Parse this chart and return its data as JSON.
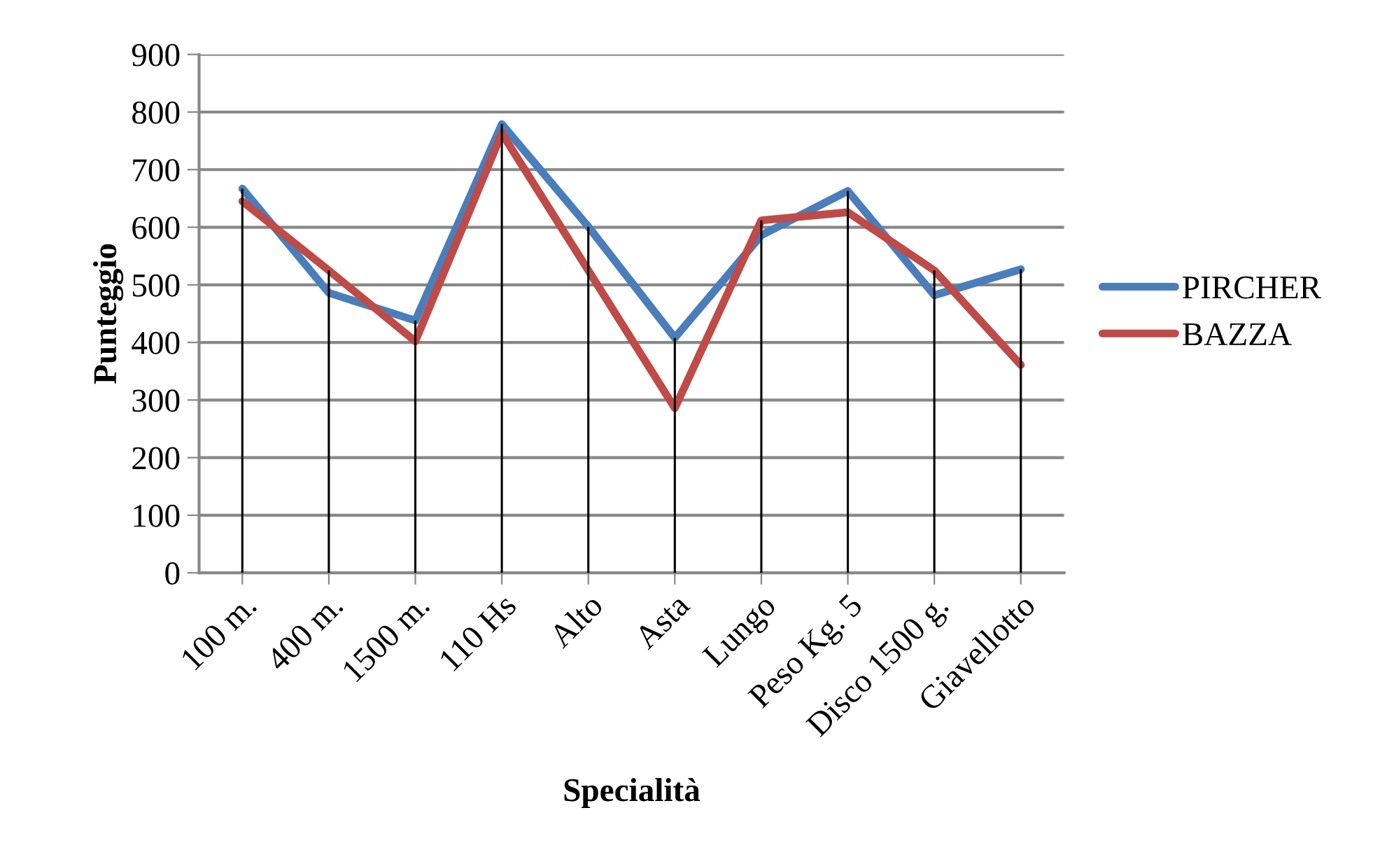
{
  "chart_data": {
    "type": "line",
    "xlabel": "Specialità",
    "ylabel": "Punteggio",
    "categories": [
      "100 m.",
      "400 m.",
      "1500 m.",
      "110 Hs",
      "Alto",
      "Asta",
      "Lungo",
      "Peso Kg. 5",
      "Disco 1500 g.",
      "Giavellotto"
    ],
    "series": [
      {
        "name": "PIRCHER",
        "color": "#4a7ebb",
        "values": [
          667,
          486,
          438,
          779,
          601,
          408,
          586,
          663,
          482,
          527
        ]
      },
      {
        "name": "BAZZA",
        "color": "#be4b48",
        "values": [
          645,
          525,
          402,
          763,
          525,
          286,
          612,
          626,
          525,
          361
        ]
      },
      {
        "type": "bar",
        "color": "#000000",
        "values": [
          667,
          525,
          438,
          779,
          601,
          408,
          612,
          663,
          525,
          527
        ]
      }
    ],
    "ylim": [
      0,
      900
    ],
    "yticks": [
      0,
      100,
      200,
      300,
      400,
      500,
      600,
      700,
      800,
      900
    ],
    "grid": "y",
    "legend": "right",
    "marker": "none",
    "line_style": "solid"
  }
}
